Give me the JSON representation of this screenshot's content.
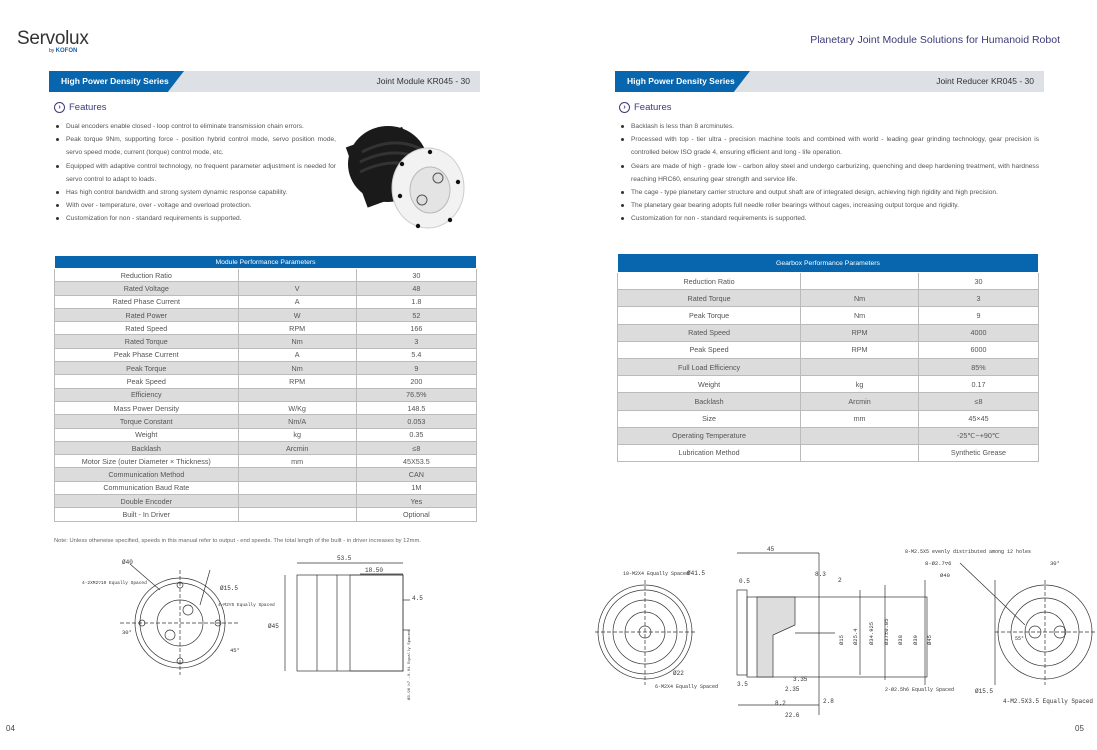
{
  "brand": {
    "name": "Servolux",
    "sub_prefix": "by",
    "sub_brand": "KOFON"
  },
  "doc_title": "Planetary Joint Module Solutions for Humanoid Robot",
  "left": {
    "series": "High Power Density Series",
    "model": "Joint Module KR045 - 30",
    "features_heading": "Features",
    "features": [
      "Dual encoders enable closed - loop control to eliminate transmission chain errors.",
      "Peak torque 9Nm, supporting force - position hybrid control mode, servo position mode, servo speed mode, current (torque) control mode, etc.",
      "Equipped with adaptive control technology, no frequent parameter adjustment is needed for servo control to adapt to loads.",
      "Has high control bandwidth and strong system dynamic response capability.",
      "With over - temperature, over - voltage and overload protection.",
      "Customization for non - standard requirements is supported."
    ],
    "table_title": "Module Performance Parameters",
    "rows": [
      [
        "Reduction Ratio",
        "",
        "30"
      ],
      [
        "Rated Voltage",
        "V",
        "48"
      ],
      [
        "Rated Phase Current",
        "A",
        "1.8"
      ],
      [
        "Rated Power",
        "W",
        "52"
      ],
      [
        "Rated Speed",
        "RPM",
        "166"
      ],
      [
        "Rated Torque",
        "Nm",
        "3"
      ],
      [
        "Peak Phase Current",
        "A",
        "5.4"
      ],
      [
        "Peak Torque",
        "Nm",
        "9"
      ],
      [
        "Peak Speed",
        "RPM",
        "200"
      ],
      [
        "Efficiency",
        "",
        "76.5%"
      ],
      [
        "Mass Power Density",
        "W/Kg",
        "148.5"
      ],
      [
        "Torque Constant",
        "Nm/A",
        "0.053"
      ],
      [
        "Weight",
        "kg",
        "0.35"
      ],
      [
        "Backlash",
        "Arcmin",
        "≤8"
      ],
      [
        "Motor Size (outer Diameter × Thickness)",
        "mm",
        "45X53.5"
      ],
      [
        "Communication Method",
        "",
        "CAN"
      ],
      [
        "Communication Baud Rate",
        "",
        "1M"
      ],
      [
        "Double Encoder",
        "",
        "Yes"
      ],
      [
        "Built - In Driver",
        "",
        "Optional"
      ]
    ],
    "note": "Note: Unless otherwise specified, speeds in this manual refer to output - end speeds. The total length of the built - in driver increases by 12mm.",
    "drawing_labels": {
      "d40": "Ø40",
      "holes_a": "4-2XM2▽10 Equally Spaced",
      "d155": "Ø15.5",
      "holes_b": "4-M2▽5 Equally Spaced",
      "a30": "30°",
      "a45": "45°",
      "len": "53.5",
      "len2": "18.50",
      "d45": "Ø45",
      "s45": "4.5",
      "pins": "Ø3.98 h7 -0.01 Equally Spaced"
    },
    "page": "04"
  },
  "right": {
    "series": "High Power Density Series",
    "model": "Joint Reducer KR045 - 30",
    "features_heading": "Features",
    "features": [
      "Backlash is less than 8 arcminutes.",
      "Processed with top - tier ultra - precision machine tools and combined with world - leading gear grinding technology, gear precision is controlled below ISO grade 4, ensuring efficient and long - life operation.",
      "Gears are made of high - grade low - carbon alloy steel and undergo carburizing, quenching and deep hardening treatment, with hardness reaching HRC60, ensuring gear strength and service life.",
      "The cage - type planetary carrier structure and output shaft are of integrated design, achieving high rigidity and high precision.",
      "The planetary gear bearing adopts full needle roller bearings without cages, increasing output torque and rigidity.",
      "Customization for non - standard requirements is supported."
    ],
    "table_title": "Gearbox  Performance Parameters",
    "rows": [
      [
        "Reduction Ratio",
        "",
        "30"
      ],
      [
        "Rated Torque",
        "Nm",
        "3"
      ],
      [
        "Peak Torque",
        "Nm",
        "9"
      ],
      [
        "Rated Speed",
        "RPM",
        "4000"
      ],
      [
        "Peak Speed",
        "RPM",
        "6000"
      ],
      [
        "Full Load Efficiency",
        "",
        "85%"
      ],
      [
        "Weight",
        "kg",
        "0.17"
      ],
      [
        "Backlash",
        "Arcmin",
        "≤8"
      ],
      [
        "Size",
        "mm",
        "45×45"
      ],
      [
        "Operating Temperature",
        "",
        "-25℃~+90℃"
      ],
      [
        "Lubrication Method",
        "",
        "Synthetic Grease"
      ]
    ],
    "drawing_labels": {
      "holes10": "10-M2X4 Equally Spaced",
      "d415": "Ø41.5",
      "d22": "Ø22",
      "holes6": "6-M2X4 Equally Spaced",
      "l45": "45",
      "l05": "0.5",
      "l83": "8.3",
      "l2": "2",
      "l35": "3.5",
      "l335": "3.35",
      "l235": "2.35",
      "l82": "8.2",
      "l28": "2.8",
      "l226": "22.6",
      "dd": [
        "Ø15",
        "Ø25.4",
        "Ø34.925",
        "Ø37±0.05",
        "Ø38",
        "Ø39",
        "Ø45"
      ],
      "holes8": "8-M2.5X5 evenly distributed among 12 holes",
      "d27": "8-Ø2.7▽6",
      "r30": "30°",
      "d40": "Ø40",
      "a55": "55°",
      "pins2": "2-Ø2.5h6 Equally Spaced",
      "d155": "Ø15.5",
      "holes4": "4-M2.5X3.5 Equally Spaced"
    },
    "page": "05"
  },
  "colors": {
    "accent": "#0766ad",
    "title": "#3c3a78",
    "banner_bg": "#dde0e4",
    "row_alt": "#dcdcdc"
  }
}
